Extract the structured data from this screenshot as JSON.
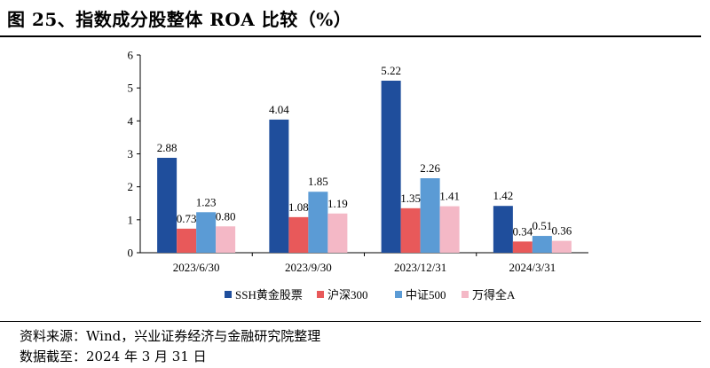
{
  "figure": {
    "title": "图 25、指数成分股整体 ROA 比较（%）",
    "source": "资料来源：Wind，兴业证券经济与金融研究院整理",
    "date_note": "数据截至：2024 年 3 月 31 日"
  },
  "chart_data": {
    "type": "bar",
    "categories": [
      "2023/6/30",
      "2023/9/30",
      "2023/12/31",
      "2024/3/31"
    ],
    "series": [
      {
        "name": "SSH黄金股票",
        "color": "#1f4e9c",
        "values": [
          2.88,
          4.04,
          5.22,
          1.42
        ]
      },
      {
        "name": "沪深300",
        "color": "#e8595a",
        "values": [
          0.73,
          1.08,
          1.35,
          0.34
        ]
      },
      {
        "name": "中证500",
        "color": "#5b9bd5",
        "values": [
          1.23,
          1.85,
          2.26,
          0.51
        ]
      },
      {
        "name": "万得全A",
        "color": "#f4b8c6",
        "values": [
          0.8,
          1.19,
          1.41,
          0.36
        ]
      }
    ],
    "data_labels": [
      [
        "2.88",
        "4.04",
        "5.22",
        "1.42"
      ],
      [
        "0.73",
        "1.08",
        "1.35",
        "0.34"
      ],
      [
        "1.23",
        "1.85",
        "2.26",
        "0.51"
      ],
      [
        "0.80",
        "1.19",
        "1.41",
        "0.36"
      ]
    ],
    "yticks": [
      "0",
      "1",
      "2",
      "3",
      "4",
      "5",
      "6"
    ],
    "ylim": [
      0,
      6
    ],
    "grid": false,
    "legend_position": "bottom"
  }
}
